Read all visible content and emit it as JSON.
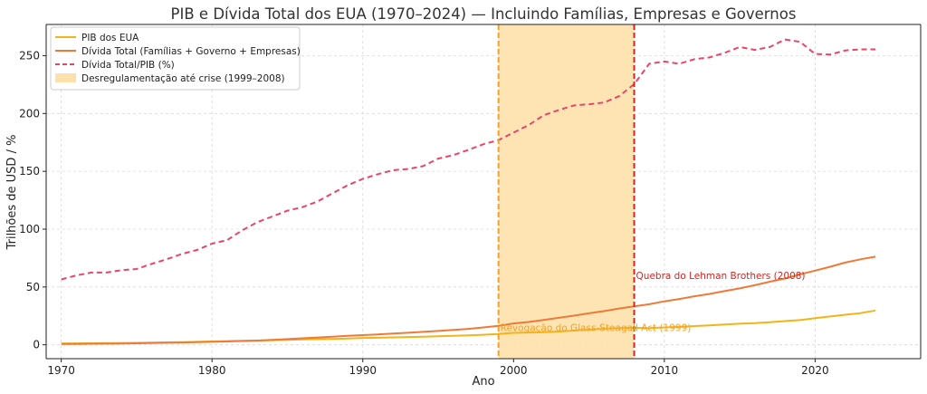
{
  "chart_data": {
    "type": "line",
    "title": "PIB e Dívida Total dos EUA (1970–2024) — Incluindo Famílias, Empresas e Governos",
    "xlabel": "Ano",
    "ylabel": "Trilhões de USD / %",
    "xlim": [
      1969,
      2027
    ],
    "ylim": [
      -12,
      277
    ],
    "x_ticks": [
      1970,
      1980,
      1990,
      2000,
      2010,
      2020
    ],
    "y_ticks": [
      0,
      50,
      100,
      150,
      200,
      250
    ],
    "grid": true,
    "legend_position": "top-left",
    "x": [
      1970,
      1971,
      1972,
      1973,
      1974,
      1975,
      1976,
      1977,
      1978,
      1979,
      1980,
      1981,
      1982,
      1983,
      1984,
      1985,
      1986,
      1987,
      1988,
      1989,
      1990,
      1991,
      1992,
      1993,
      1994,
      1995,
      1996,
      1997,
      1998,
      1999,
      2000,
      2001,
      2002,
      2003,
      2004,
      2005,
      2006,
      2007,
      2008,
      2009,
      2010,
      2011,
      2012,
      2013,
      2014,
      2015,
      2016,
      2017,
      2018,
      2019,
      2020,
      2021,
      2022,
      2023,
      2024
    ],
    "series": [
      {
        "name": "PIB dos EUA",
        "color": "#f2b418",
        "dash": "solid",
        "values": [
          1.1,
          1.2,
          1.3,
          1.4,
          1.5,
          1.7,
          1.9,
          2.1,
          2.3,
          2.6,
          2.9,
          3.2,
          3.4,
          3.6,
          4.0,
          4.3,
          4.6,
          4.8,
          5.1,
          5.4,
          5.9,
          6.1,
          6.4,
          6.7,
          7.0,
          7.4,
          7.8,
          8.2,
          8.7,
          9.3,
          10.3,
          10.6,
          10.9,
          11.5,
          12.3,
          13.1,
          13.9,
          14.5,
          14.7,
          14.5,
          15.0,
          15.5,
          16.2,
          16.8,
          17.5,
          18.2,
          18.7,
          19.5,
          20.5,
          21.4,
          23.0,
          24.5,
          26.0,
          27.4,
          29.7
        ]
      },
      {
        "name": "Dívida Total (Famílias + Governo + Empresas)",
        "color": "#ef7a38",
        "dash": "solid",
        "values": [
          0.7,
          0.8,
          0.9,
          1.0,
          1.1,
          1.3,
          1.5,
          1.8,
          2.0,
          2.3,
          2.6,
          2.9,
          3.3,
          3.7,
          4.3,
          4.9,
          5.6,
          6.3,
          7.0,
          7.7,
          8.4,
          9.0,
          9.7,
          10.4,
          11.2,
          12.0,
          12.8,
          13.8,
          15.0,
          16.4,
          18.5,
          19.7,
          21.5,
          23.3,
          25.2,
          27.2,
          29.1,
          31.4,
          33.2,
          35.1,
          37.6,
          39.6,
          42.0,
          44.0,
          46.4,
          48.8,
          51.5,
          54.6,
          57.3,
          60.9,
          64.1,
          67.5,
          71.1,
          73.9,
          76.2
        ]
      },
      {
        "name": "Dívida Total/PIB (%)",
        "color": "#e8456b",
        "dash": "dashed",
        "values": [
          56.5,
          60.0,
          62.5,
          62.5,
          64.5,
          65.5,
          70.0,
          74.0,
          78.5,
          82.0,
          87.5,
          90.5,
          99.0,
          106.0,
          111.0,
          116.0,
          119.0,
          124.0,
          131.0,
          138.0,
          143.5,
          147.5,
          151.0,
          152.0,
          154.5,
          161.0,
          164.0,
          168.5,
          173.5,
          177.0,
          183.5,
          190.0,
          198.5,
          203.0,
          207.0,
          208.0,
          209.5,
          215.0,
          225.5,
          243.0,
          245.0,
          243.0,
          247.0,
          248.5,
          252.5,
          257.5,
          255.0,
          257.5,
          264.0,
          262.0,
          251.5,
          251.0,
          254.5,
          255.5,
          255.5
        ]
      }
    ],
    "shaded_region": {
      "name": "Desregulamentação até crise (1999–2008)",
      "x_start": 1999,
      "x_end": 2008,
      "color": "#fde1aa"
    },
    "annotations": [
      {
        "text": "Revogação do Glass-Steagall Act (1999)",
        "x": 1999,
        "y": 15,
        "line_color": "#f2a12e",
        "text_color": "#f2a12e"
      },
      {
        "text": "Quebra do Lehman Brothers (2008)",
        "x": 2008,
        "y": 60,
        "line_color": "#d42525",
        "text_color": "#d42525"
      }
    ]
  }
}
